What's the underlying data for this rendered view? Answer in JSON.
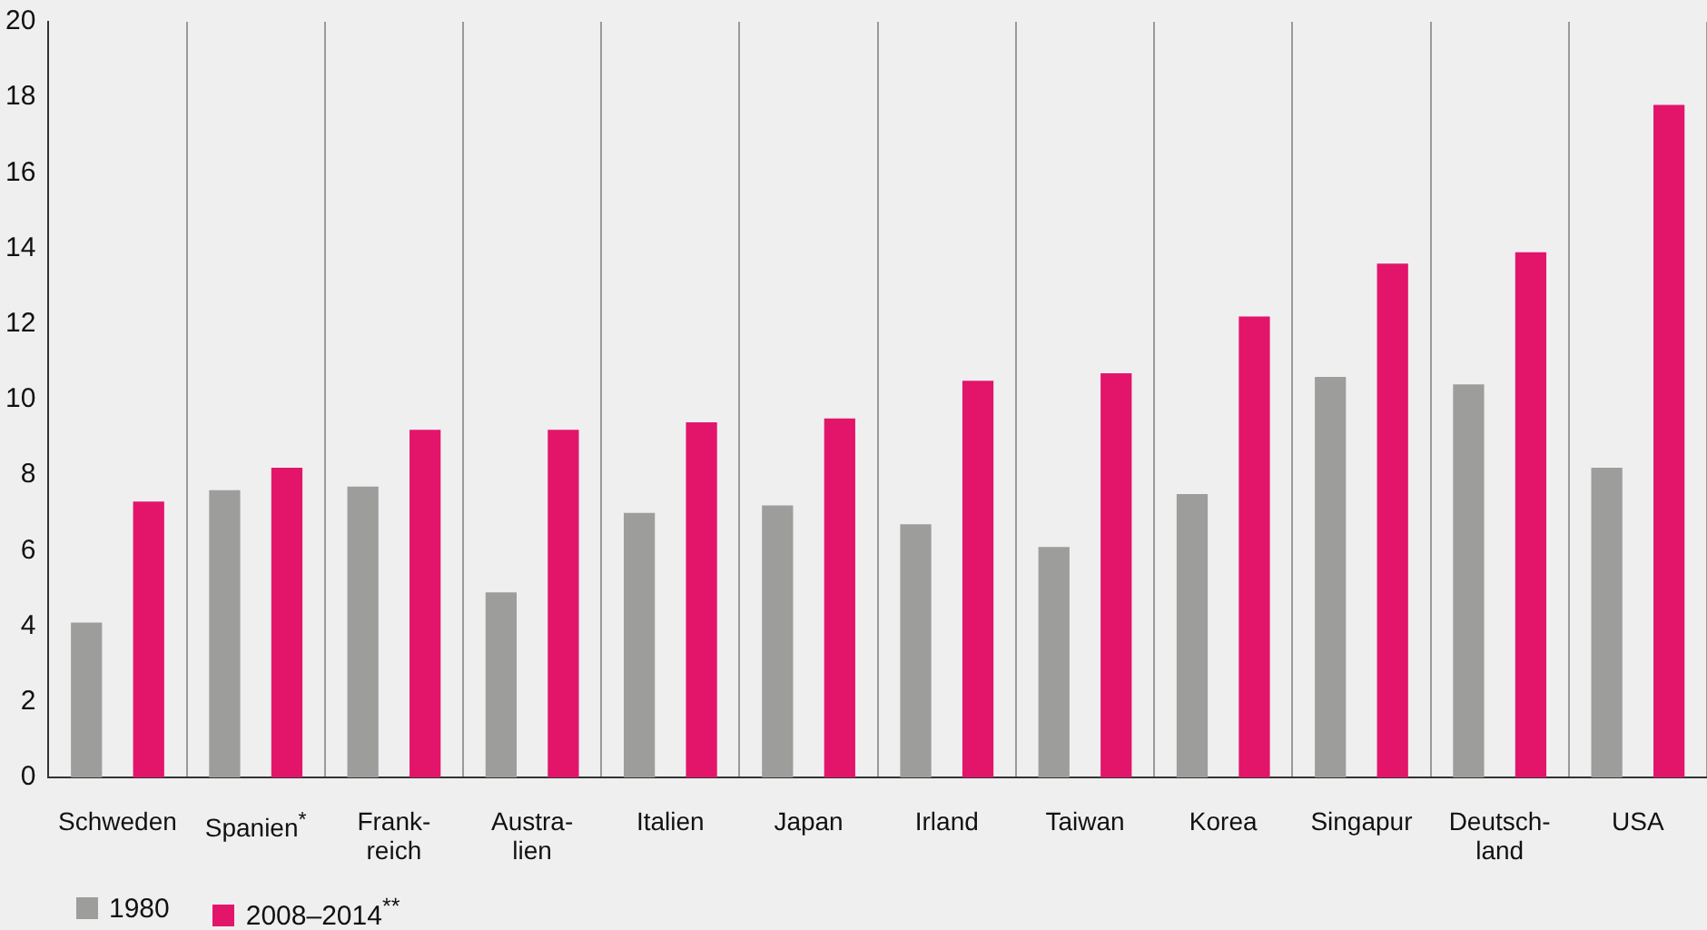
{
  "chart_data": {
    "type": "bar",
    "categories": [
      "Schweden",
      "Spanien$^{*}$",
      "Frank-\nreich",
      "Austra-\nlien",
      "Italien",
      "Japan",
      "Irland",
      "Taiwan",
      "Korea",
      "Singapur",
      "Deutsch-\nland",
      "USA"
    ],
    "series": [
      {
        "name": "1980",
        "color": "#9d9d9c",
        "values": [
          4.1,
          7.6,
          7.7,
          4.9,
          7.0,
          7.2,
          6.7,
          6.1,
          7.5,
          10.6,
          10.4,
          8.2
        ]
      },
      {
        "name": "2008–2014$^{**}$",
        "color": "#e2156b",
        "values": [
          7.3,
          8.2,
          9.2,
          9.2,
          9.4,
          9.5,
          10.5,
          10.7,
          12.2,
          13.6,
          13.9,
          17.8
        ]
      }
    ],
    "ylim": [
      0,
      20
    ],
    "yticks": [
      0,
      2,
      4,
      6,
      8,
      10,
      12,
      14,
      16,
      18,
      20
    ],
    "grid": "x",
    "legend": "bottom left"
  }
}
